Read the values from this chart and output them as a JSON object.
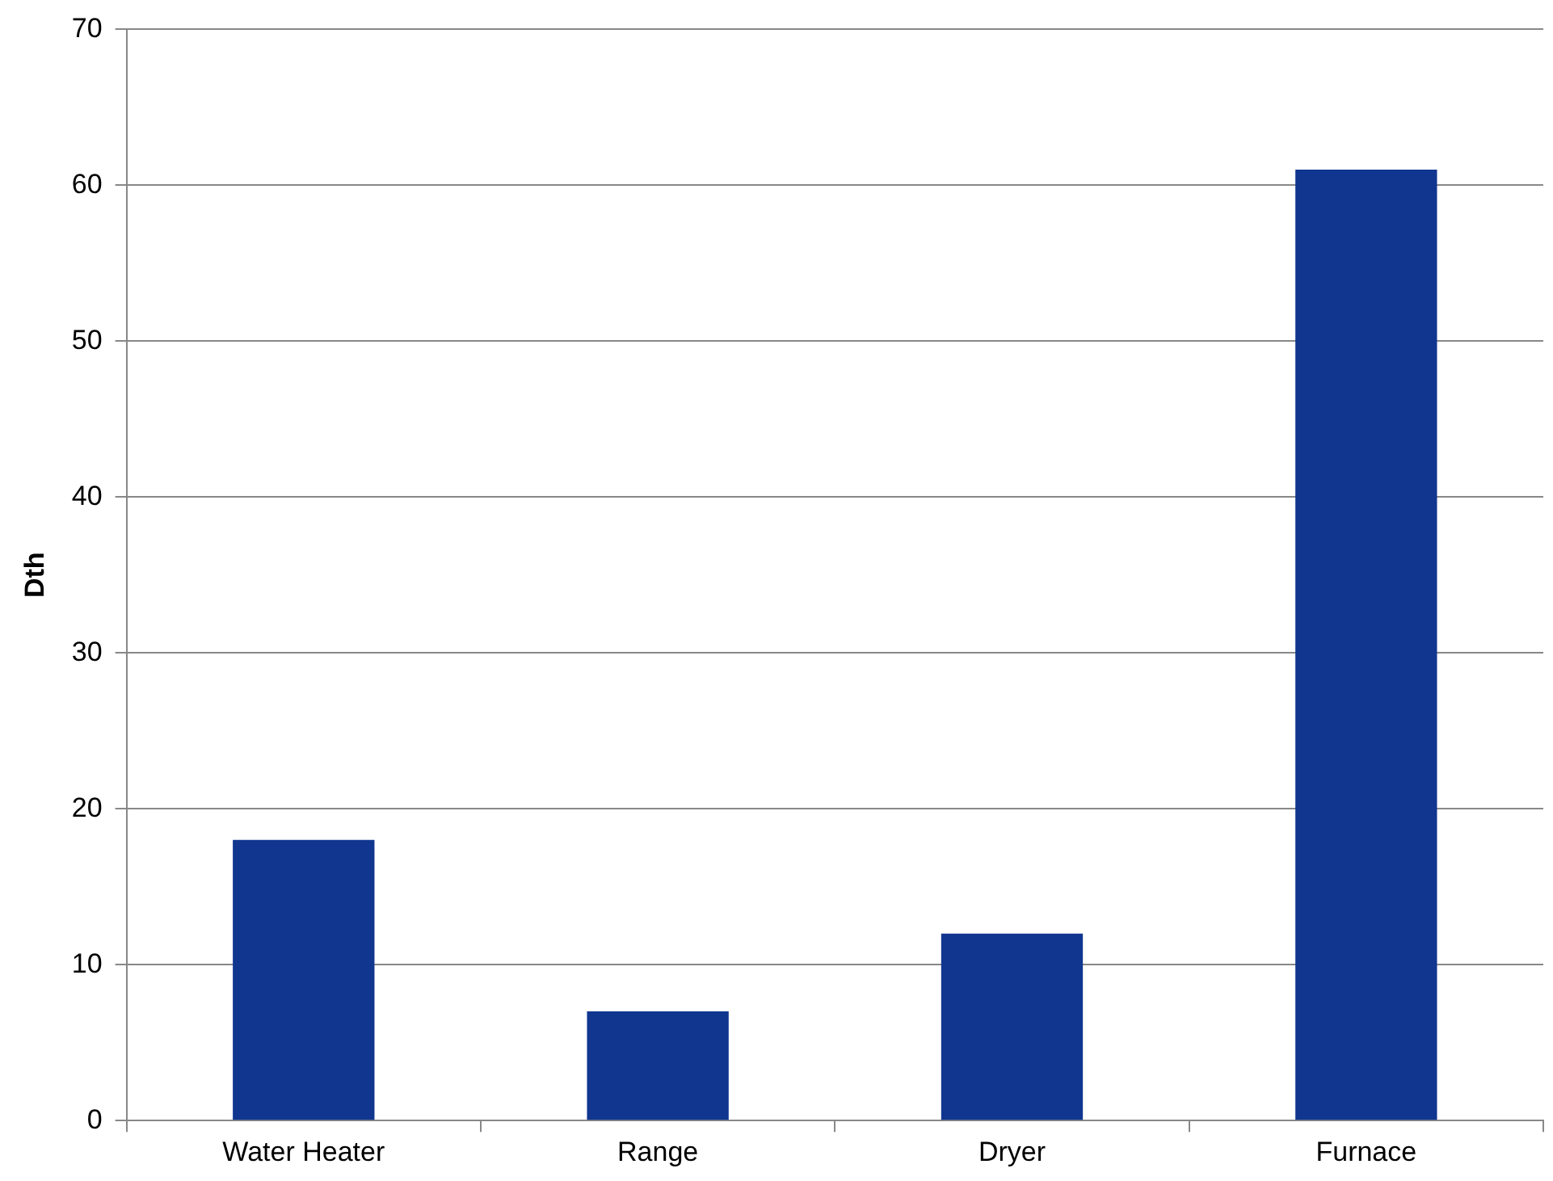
{
  "chart_data": {
    "type": "bar",
    "ylabel": "Dth",
    "categories": [
      "Water Heater",
      "Range",
      "Dryer",
      "Furnace"
    ],
    "values": [
      18,
      7,
      12,
      61
    ],
    "color": "#10368f",
    "ylim": [
      0,
      70
    ],
    "yticks": [
      0,
      10,
      20,
      30,
      40,
      50,
      60,
      70
    ],
    "grid": "y",
    "legend": false
  }
}
